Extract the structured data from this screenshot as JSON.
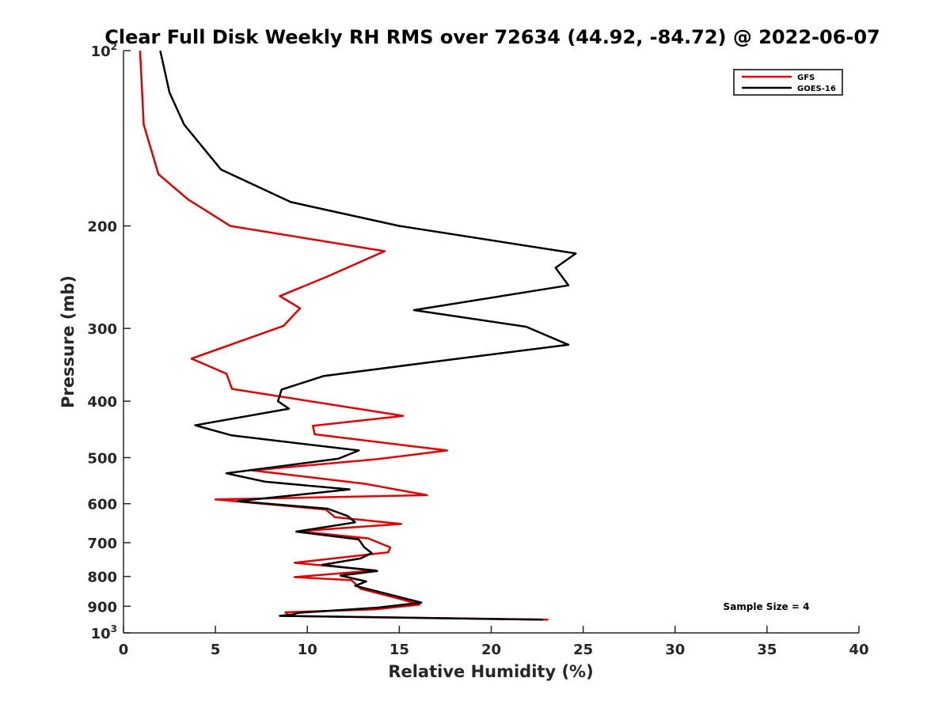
{
  "chart_data": {
    "type": "line",
    "title": "Clear Full Disk Weekly RH RMS over 72634 (44.92, -84.72) @ 2022-06-07",
    "xlabel": "Relative Humidity (%)",
    "ylabel": "Pressure (mb)",
    "xlim": [
      0,
      40
    ],
    "ylim": [
      100,
      1000
    ],
    "yscale": "log",
    "y_reversed": true,
    "x_ticks": [
      0,
      5,
      10,
      15,
      20,
      25,
      30,
      35,
      40
    ],
    "x_tick_labels": [
      "0",
      "5",
      "10",
      "15",
      "20",
      "25",
      "30",
      "35",
      "40"
    ],
    "y_ticks": [
      {
        "value": 100,
        "base": "10",
        "exp": "2"
      },
      {
        "value": 200,
        "label": "200"
      },
      {
        "value": 300,
        "label": "300"
      },
      {
        "value": 400,
        "label": "400"
      },
      {
        "value": 500,
        "label": "500"
      },
      {
        "value": 600,
        "label": "600"
      },
      {
        "value": 700,
        "label": "700"
      },
      {
        "value": 800,
        "label": "800"
      },
      {
        "value": 900,
        "label": "900"
      },
      {
        "value": 1000,
        "base": "10",
        "exp": "3"
      }
    ],
    "legend": {
      "position": "top-right",
      "entries": [
        "GFS",
        "GOES-16"
      ]
    },
    "annotation": "Sample Size = 4",
    "grid": false,
    "series": [
      {
        "name": "GFS",
        "color": "#e00000",
        "points": [
          [
            0.9,
            100
          ],
          [
            1.1,
            134
          ],
          [
            1.9,
            163
          ],
          [
            3.5,
            180
          ],
          [
            5.8,
            200
          ],
          [
            14.2,
            221
          ],
          [
            11.0,
            245
          ],
          [
            8.5,
            264
          ],
          [
            9.6,
            277
          ],
          [
            8.7,
            297
          ],
          [
            3.7,
            338
          ],
          [
            5.6,
            359
          ],
          [
            5.9,
            381
          ],
          [
            15.2,
            424
          ],
          [
            10.3,
            441
          ],
          [
            10.4,
            456
          ],
          [
            17.6,
            486
          ],
          [
            13.8,
            503
          ],
          [
            7.0,
            526
          ],
          [
            13.2,
            555
          ],
          [
            16.5,
            580
          ],
          [
            5.0,
            590
          ],
          [
            11.0,
            614
          ],
          [
            11.5,
            633
          ],
          [
            15.1,
            650
          ],
          [
            9.5,
            669
          ],
          [
            13.3,
            688
          ],
          [
            14.5,
            713
          ],
          [
            14.4,
            727
          ],
          [
            9.3,
            758
          ],
          [
            13.7,
            781
          ],
          [
            9.3,
            802
          ],
          [
            12.4,
            812
          ],
          [
            12.9,
            840
          ],
          [
            15.2,
            877
          ],
          [
            16.1,
            894
          ],
          [
            13.7,
            911
          ],
          [
            8.8,
            922
          ],
          [
            9.0,
            932
          ],
          [
            8.6,
            935
          ],
          [
            23.1,
            949
          ]
        ]
      },
      {
        "name": "GOES-16",
        "color": "#000000",
        "points": [
          [
            2.0,
            100
          ],
          [
            2.5,
            118
          ],
          [
            3.3,
            134
          ],
          [
            5.3,
            160
          ],
          [
            9.1,
            182
          ],
          [
            15.0,
            200
          ],
          [
            24.6,
            223
          ],
          [
            23.5,
            236
          ],
          [
            24.2,
            253
          ],
          [
            15.8,
            279
          ],
          [
            21.9,
            298
          ],
          [
            24.2,
            320
          ],
          [
            17.9,
            339
          ],
          [
            10.9,
            362
          ],
          [
            8.6,
            382
          ],
          [
            8.4,
            400
          ],
          [
            9.0,
            412
          ],
          [
            3.9,
            440
          ],
          [
            5.9,
            458
          ],
          [
            12.8,
            486
          ],
          [
            11.7,
            502
          ],
          [
            5.6,
            532
          ],
          [
            7.7,
            550
          ],
          [
            12.3,
            567
          ],
          [
            6.2,
            594
          ],
          [
            11.1,
            612
          ],
          [
            12.2,
            630
          ],
          [
            12.6,
            646
          ],
          [
            9.4,
            670
          ],
          [
            12.8,
            691
          ],
          [
            13.1,
            713
          ],
          [
            13.5,
            729
          ],
          [
            12.9,
            745
          ],
          [
            10.8,
            764
          ],
          [
            13.8,
            783
          ],
          [
            11.8,
            797
          ],
          [
            13.2,
            816
          ],
          [
            12.6,
            830
          ],
          [
            13.7,
            847
          ],
          [
            16.2,
            887
          ],
          [
            13.8,
            905
          ],
          [
            9.5,
            924
          ],
          [
            9.2,
            930
          ],
          [
            8.5,
            935
          ],
          [
            22.8,
            949
          ]
        ]
      }
    ]
  }
}
